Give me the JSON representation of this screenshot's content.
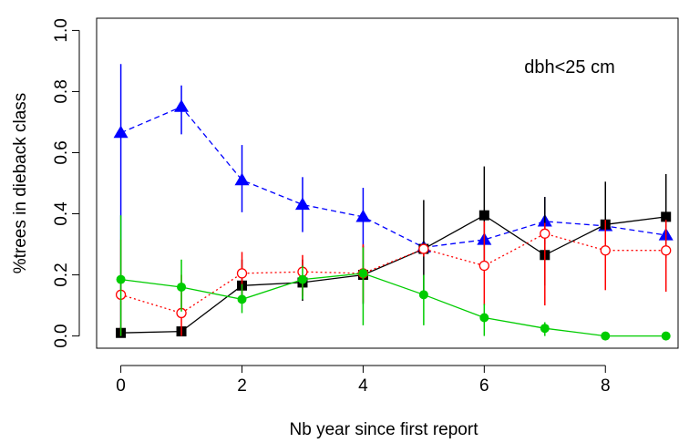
{
  "chart_data": {
    "type": "line",
    "annotation": "dbh<25 cm",
    "xlabel": "Nb year since first report",
    "ylabel": "%trees in dieback class",
    "xlim": [
      -0.4,
      9.2
    ],
    "ylim": [
      -0.04,
      1.04
    ],
    "x_ticks": [
      0,
      2,
      4,
      6,
      8
    ],
    "x_tick_labels": [
      "0",
      "2",
      "4",
      "6",
      "8"
    ],
    "y_ticks": [
      0.0,
      0.2,
      0.4,
      0.6,
      0.8,
      1.0
    ],
    "y_tick_labels": [
      "0.0",
      "0.2",
      "0.4",
      "0.6",
      "0.8",
      "1.0"
    ],
    "x": [
      0,
      1,
      2,
      3,
      4,
      5,
      6,
      7,
      8,
      9
    ],
    "series": [
      {
        "color": "#0000ff",
        "marker": "triangle-filled",
        "line_style": "dashed",
        "values": [
          0.665,
          0.75,
          0.51,
          0.43,
          0.39,
          0.29,
          0.315,
          0.375,
          0.36,
          0.33
        ],
        "err_low": [
          0.02,
          0.66,
          0.405,
          0.34,
          0.29,
          0.27,
          0.3,
          0.3,
          0.34,
          0.31
        ],
        "err_high": [
          0.89,
          0.82,
          0.625,
          0.52,
          0.485,
          0.31,
          0.33,
          0.455,
          0.38,
          0.345
        ]
      },
      {
        "color": "#000000",
        "marker": "square-filled",
        "line_style": "solid",
        "values": [
          0.01,
          0.015,
          0.165,
          0.175,
          0.2,
          0.285,
          0.395,
          0.265,
          0.365,
          0.39
        ],
        "err_low": [
          0.0,
          0.0,
          0.11,
          0.115,
          0.105,
          0.13,
          0.24,
          0.165,
          0.225,
          0.255
        ],
        "err_high": [
          0.03,
          0.03,
          0.25,
          0.25,
          0.295,
          0.445,
          0.555,
          0.455,
          0.505,
          0.53
        ]
      },
      {
        "color": "#ff0000",
        "marker": "circle-open",
        "line_style": "dotted",
        "values": [
          0.135,
          0.075,
          0.205,
          0.21,
          0.205,
          0.285,
          0.23,
          0.335,
          0.28,
          0.28
        ],
        "err_low": [
          0.0,
          0.0,
          0.12,
          0.13,
          0.11,
          0.26,
          0.1,
          0.1,
          0.15,
          0.145
        ],
        "err_high": [
          0.315,
          0.2,
          0.275,
          0.265,
          0.3,
          0.3,
          0.375,
          0.37,
          0.38,
          0.38
        ]
      },
      {
        "color": "#00cc00",
        "marker": "circle-filled",
        "line_style": "solid",
        "values": [
          0.185,
          0.16,
          0.12,
          0.185,
          0.205,
          0.135,
          0.06,
          0.025,
          0.0,
          0.0
        ],
        "err_low": [
          0.0,
          0.08,
          0.075,
          0.12,
          0.035,
          0.035,
          0.0,
          0.0,
          0.0,
          0.0
        ],
        "err_high": [
          0.395,
          0.25,
          0.17,
          0.23,
          0.29,
          0.2,
          0.105,
          0.045,
          0.0,
          0.0
        ]
      }
    ]
  }
}
